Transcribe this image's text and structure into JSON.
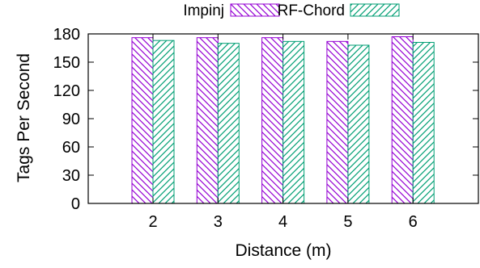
{
  "chart_data": {
    "type": "bar",
    "categories": [
      "2",
      "3",
      "4",
      "5",
      "6"
    ],
    "series": [
      {
        "name": "Impinj",
        "values": [
          176,
          176,
          176,
          172,
          177
        ],
        "color": "#9400d3",
        "pattern": "diagonal-down"
      },
      {
        "name": "RF-Chord",
        "values": [
          173,
          170,
          172,
          168,
          171
        ],
        "color": "#009e73",
        "pattern": "diagonal-up"
      }
    ],
    "xlabel": "Distance (m)",
    "ylabel": "Tags Per Second",
    "ylim": [
      0,
      180
    ],
    "yticks": [
      0,
      30,
      60,
      90,
      120,
      150,
      180
    ],
    "grid": false,
    "legend_position": "top"
  }
}
